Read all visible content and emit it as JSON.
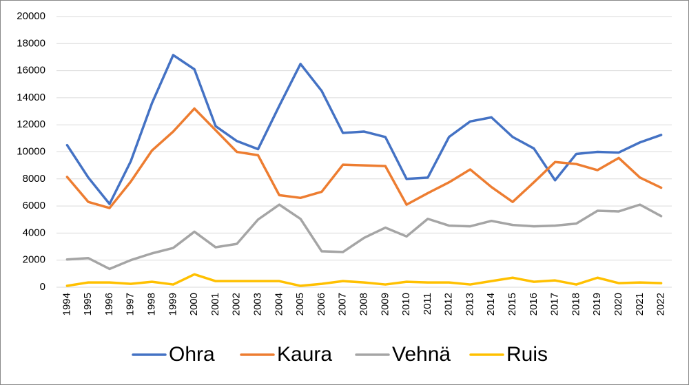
{
  "chart_data": {
    "type": "line",
    "categories": [
      "1994",
      "1995",
      "1996",
      "1997",
      "1998",
      "1999",
      "2000",
      "2001",
      "2002",
      "2003",
      "2004",
      "2005",
      "2006",
      "2007",
      "2008",
      "2009",
      "2010",
      "2011",
      "2012",
      "2013",
      "2014",
      "2015",
      "2016",
      "2017",
      "2018",
      "2019",
      "2020",
      "2021",
      "2022"
    ],
    "series": [
      {
        "name": "Ohra",
        "color": "#4472c4",
        "values": [
          10500,
          8100,
          6150,
          9300,
          13600,
          17150,
          16100,
          11900,
          10800,
          10200,
          13400,
          16500,
          14500,
          11400,
          11500,
          11100,
          8000,
          8100,
          11100,
          12250,
          12550,
          11100,
          10250,
          7900,
          9850,
          10000,
          9950,
          10700,
          11250
        ]
      },
      {
        "name": "Kaura",
        "color": "#ed7d31",
        "values": [
          8150,
          6300,
          5850,
          7800,
          10100,
          11500,
          13200,
          11600,
          10000,
          9750,
          6800,
          6600,
          7050,
          9050,
          9000,
          8950,
          6100,
          6950,
          7750,
          8700,
          7400,
          6300,
          7750,
          9250,
          9100,
          8650,
          9550,
          8100,
          7350
        ]
      },
      {
        "name": "Vehnä",
        "color": "#a5a5a5",
        "values": [
          2050,
          2150,
          1350,
          2000,
          2500,
          2900,
          4100,
          2950,
          3200,
          5000,
          6100,
          5050,
          2650,
          2600,
          3650,
          4400,
          3750,
          5050,
          4550,
          4500,
          4900,
          4600,
          4500,
          4550,
          4700,
          5650,
          5600,
          6100,
          5250
        ]
      },
      {
        "name": "Ruis",
        "color": "#ffc000",
        "values": [
          100,
          350,
          350,
          250,
          400,
          200,
          950,
          450,
          450,
          450,
          450,
          100,
          250,
          450,
          350,
          200,
          400,
          350,
          350,
          200,
          450,
          700,
          400,
          500,
          200,
          700,
          300,
          350,
          300
        ]
      }
    ],
    "ylim": [
      0,
      20000
    ],
    "yticks": [
      0,
      2000,
      4000,
      6000,
      8000,
      10000,
      12000,
      14000,
      16000,
      18000,
      20000
    ],
    "grid": true,
    "legend": "bottom"
  }
}
